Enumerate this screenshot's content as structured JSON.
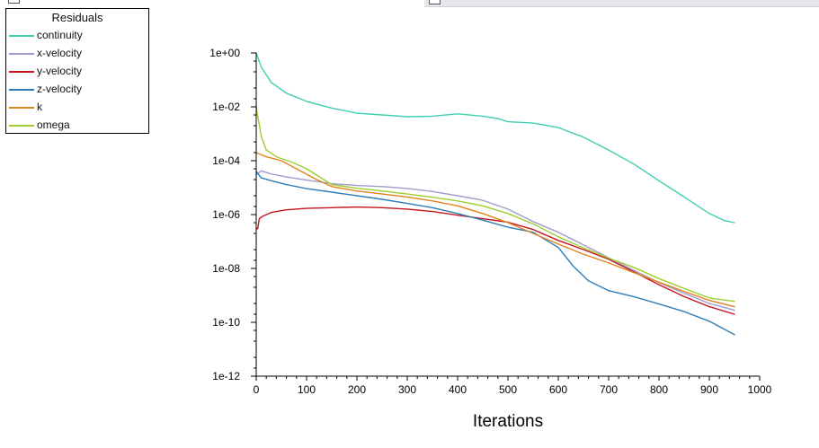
{
  "chart_data": {
    "type": "line",
    "title": "",
    "xlabel": "Iterations",
    "ylabel": "",
    "xlim": [
      0,
      1000
    ],
    "ylim": [
      1e-12,
      1
    ],
    "yscale": "log",
    "x_ticks": [
      0,
      100,
      200,
      300,
      400,
      500,
      600,
      700,
      800,
      900,
      1000
    ],
    "x_tick_labels": [
      "0",
      "100",
      "200",
      "300",
      "400",
      "500",
      "600",
      "700",
      "800",
      "900",
      "1000"
    ],
    "y_ticks": [
      1e-12,
      1e-10,
      1e-08,
      1e-06,
      0.0001,
      0.01,
      1
    ],
    "y_tick_labels": [
      "1e-12",
      "1e-10",
      "1e-08",
      "1e-06",
      "1e-04",
      "1e-02",
      "1e+00"
    ],
    "grid": false,
    "legend": {
      "title": "Residuals",
      "placement": "top-left"
    },
    "series": [
      {
        "name": "continuity",
        "color": "#3fcfb0",
        "points": [
          [
            0,
            1
          ],
          [
            10,
            0.3
          ],
          [
            30,
            0.08
          ],
          [
            60,
            0.032
          ],
          [
            100,
            0.016
          ],
          [
            150,
            0.009
          ],
          [
            200,
            0.0058
          ],
          [
            250,
            0.005
          ],
          [
            300,
            0.0043
          ],
          [
            350,
            0.0045
          ],
          [
            400,
            0.0055
          ],
          [
            450,
            0.0045
          ],
          [
            480,
            0.0037
          ],
          [
            500,
            0.0028
          ],
          [
            550,
            0.0025
          ],
          [
            600,
            0.0017
          ],
          [
            650,
            0.00075
          ],
          [
            700,
            0.00025
          ],
          [
            750,
            7.5e-05
          ],
          [
            800,
            1.8e-05
          ],
          [
            850,
            4.5e-06
          ],
          [
            900,
            1.1e-06
          ],
          [
            930,
            6e-07
          ],
          [
            950,
            5e-07
          ]
        ]
      },
      {
        "name": "x-velocity",
        "color": "#9d9ccb",
        "points": [
          [
            0,
            3e-05
          ],
          [
            10,
            4.2e-05
          ],
          [
            30,
            3.2e-05
          ],
          [
            60,
            2.5e-05
          ],
          [
            100,
            1.9e-05
          ],
          [
            150,
            1.4e-05
          ],
          [
            200,
            1.2e-05
          ],
          [
            250,
            1.1e-05
          ],
          [
            300,
            9.3e-06
          ],
          [
            350,
            7.2e-06
          ],
          [
            400,
            5e-06
          ],
          [
            450,
            3.4e-06
          ],
          [
            500,
            1.6e-06
          ],
          [
            550,
            5.5e-07
          ],
          [
            600,
            2.2e-07
          ],
          [
            650,
            7.5e-08
          ],
          [
            700,
            2.5e-08
          ],
          [
            750,
            8.5e-09
          ],
          [
            800,
            3e-09
          ],
          [
            850,
            1.2e-09
          ],
          [
            900,
            5e-10
          ],
          [
            950,
            2.8e-10
          ]
        ]
      },
      {
        "name": "y-velocity",
        "color": "#c4151f",
        "points": [
          [
            0,
            3e-07
          ],
          [
            3,
            3e-07
          ],
          [
            6,
            7e-07
          ],
          [
            12,
            8.5e-07
          ],
          [
            30,
            1.2e-06
          ],
          [
            60,
            1.5e-06
          ],
          [
            100,
            1.7e-06
          ],
          [
            150,
            1.8e-06
          ],
          [
            200,
            1.9e-06
          ],
          [
            250,
            1.8e-06
          ],
          [
            300,
            1.6e-06
          ],
          [
            350,
            1.3e-06
          ],
          [
            400,
            9.5e-07
          ],
          [
            450,
            7e-07
          ],
          [
            500,
            5.2e-07
          ],
          [
            550,
            2.8e-07
          ],
          [
            600,
            1.1e-07
          ],
          [
            650,
            5e-08
          ],
          [
            700,
            2.2e-08
          ],
          [
            750,
            7.5e-09
          ],
          [
            800,
            2.5e-09
          ],
          [
            850,
            9e-10
          ],
          [
            900,
            3.8e-10
          ],
          [
            950,
            2e-10
          ]
        ]
      },
      {
        "name": "z-velocity",
        "color": "#2e7db8",
        "points": [
          [
            0,
            4e-05
          ],
          [
            10,
            2.3e-05
          ],
          [
            30,
            1.8e-05
          ],
          [
            60,
            1.3e-05
          ],
          [
            100,
            9.2e-06
          ],
          [
            150,
            6.8e-06
          ],
          [
            200,
            5e-06
          ],
          [
            250,
            3.7e-06
          ],
          [
            300,
            2.6e-06
          ],
          [
            350,
            1.8e-06
          ],
          [
            400,
            1.1e-06
          ],
          [
            450,
            6.2e-07
          ],
          [
            500,
            3.4e-07
          ],
          [
            550,
            2.2e-07
          ],
          [
            600,
            6e-08
          ],
          [
            630,
            1.2e-08
          ],
          [
            660,
            3.5e-09
          ],
          [
            700,
            1.5e-09
          ],
          [
            750,
            9e-10
          ],
          [
            800,
            4.8e-10
          ],
          [
            850,
            2.5e-10
          ],
          [
            900,
            1.1e-10
          ],
          [
            950,
            3.5e-11
          ]
        ]
      },
      {
        "name": "k",
        "color": "#e0821e",
        "points": [
          [
            0,
            0.0002
          ],
          [
            20,
            0.00014
          ],
          [
            50,
            0.0001
          ],
          [
            80,
            5e-05
          ],
          [
            120,
            2e-05
          ],
          [
            150,
            1.1e-05
          ],
          [
            200,
            7.5e-06
          ],
          [
            250,
            5.8e-06
          ],
          [
            300,
            4.5e-06
          ],
          [
            350,
            3.2e-06
          ],
          [
            400,
            2.1e-06
          ],
          [
            450,
            1.1e-06
          ],
          [
            500,
            5e-07
          ],
          [
            550,
            2e-07
          ],
          [
            600,
            8e-08
          ],
          [
            650,
            3.4e-08
          ],
          [
            700,
            1.6e-08
          ],
          [
            750,
            7e-09
          ],
          [
            800,
            3.1e-09
          ],
          [
            850,
            1.4e-09
          ],
          [
            900,
            6.5e-10
          ],
          [
            950,
            3.8e-10
          ]
        ]
      },
      {
        "name": "omega",
        "color": "#9ccf2e",
        "points": [
          [
            0,
            0.01
          ],
          [
            10,
            0.0008
          ],
          [
            20,
            0.00025
          ],
          [
            40,
            0.00014
          ],
          [
            70,
            9e-05
          ],
          [
            100,
            5e-05
          ],
          [
            150,
            1.3e-05
          ],
          [
            200,
            9.5e-06
          ],
          [
            250,
            7.5e-06
          ],
          [
            300,
            5.8e-06
          ],
          [
            350,
            4.4e-06
          ],
          [
            400,
            3.2e-06
          ],
          [
            450,
            2.1e-06
          ],
          [
            500,
            1.1e-06
          ],
          [
            550,
            4.5e-07
          ],
          [
            600,
            1.5e-07
          ],
          [
            650,
            5.8e-08
          ],
          [
            700,
            2.4e-08
          ],
          [
            750,
            1.1e-08
          ],
          [
            800,
            4.2e-09
          ],
          [
            850,
            1.8e-09
          ],
          [
            900,
            8e-10
          ],
          [
            950,
            6e-10
          ]
        ]
      }
    ]
  }
}
